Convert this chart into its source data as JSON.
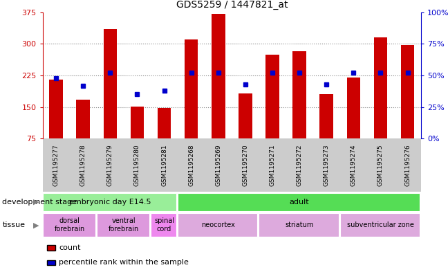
{
  "title": "GDS5259 / 1447821_at",
  "samples": [
    "GSM1195277",
    "GSM1195278",
    "GSM1195279",
    "GSM1195280",
    "GSM1195281",
    "GSM1195268",
    "GSM1195269",
    "GSM1195270",
    "GSM1195271",
    "GSM1195272",
    "GSM1195273",
    "GSM1195274",
    "GSM1195275",
    "GSM1195276"
  ],
  "counts": [
    215,
    168,
    335,
    152,
    148,
    310,
    372,
    183,
    275,
    282,
    180,
    220,
    315,
    298
  ],
  "percentiles": [
    48,
    42,
    52,
    35,
    38,
    52,
    52,
    43,
    52,
    52,
    43,
    52,
    52,
    52
  ],
  "ylim_left": [
    75,
    375
  ],
  "ylim_right": [
    0,
    100
  ],
  "yticks_left": [
    75,
    150,
    225,
    300,
    375
  ],
  "yticks_right": [
    0,
    25,
    50,
    75,
    100
  ],
  "bar_color": "#cc0000",
  "dot_color": "#0000cc",
  "grid_dotted_color": "#888888",
  "plot_bg": "#ffffff",
  "development_stage_groups": [
    {
      "label": "embryonic day E14.5",
      "start": 0,
      "end": 4,
      "color": "#99ee99"
    },
    {
      "label": "adult",
      "start": 5,
      "end": 13,
      "color": "#55dd55"
    }
  ],
  "tissue_groups": [
    {
      "label": "dorsal\nforebrain",
      "start": 0,
      "end": 1,
      "color": "#dd99dd"
    },
    {
      "label": "ventral\nforebrain",
      "start": 2,
      "end": 3,
      "color": "#dd99dd"
    },
    {
      "label": "spinal\ncord",
      "start": 4,
      "end": 4,
      "color": "#ee88ee"
    },
    {
      "label": "neocortex",
      "start": 5,
      "end": 7,
      "color": "#ddaadd"
    },
    {
      "label": "striatum",
      "start": 8,
      "end": 10,
      "color": "#ddaadd"
    },
    {
      "label": "subventricular zone",
      "start": 11,
      "end": 13,
      "color": "#ddaadd"
    }
  ],
  "left_axis_color": "#cc0000",
  "right_axis_color": "#0000cc",
  "xticklabel_bg": "#cccccc",
  "bar_width": 0.5
}
